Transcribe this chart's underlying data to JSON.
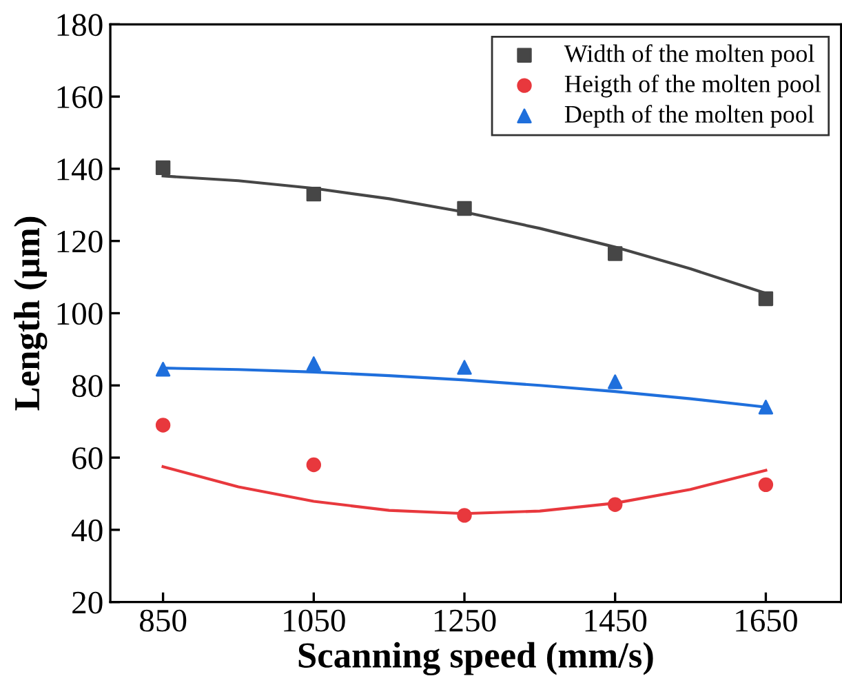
{
  "chart_data": {
    "type": "scatter",
    "xlabel": "Scanning speed (mm/s)",
    "ylabel": "Length (µm)",
    "xlim": [
      780,
      1750
    ],
    "xticks": [
      850,
      1050,
      1250,
      1450,
      1650
    ],
    "ylim": [
      20,
      180
    ],
    "yticks": [
      20,
      40,
      60,
      80,
      100,
      120,
      140,
      160,
      180
    ],
    "grid": false,
    "legend": "top right",
    "series": [
      {
        "name": "Width of the molten pool",
        "color": "#464646",
        "marker": "square",
        "x": [
          850,
          1050,
          1250,
          1450,
          1650
        ],
        "values": [
          140.3,
          133,
          129,
          116.5,
          104
        ]
      },
      {
        "name": "Heigth of the molten pool",
        "color": "#e8383d",
        "marker": "circle",
        "x": [
          850,
          1050,
          1250,
          1450,
          1650
        ],
        "values": [
          69,
          58,
          44,
          47,
          52.5
        ]
      },
      {
        "name": "Depth of the molten pool",
        "color": "#1f6fdc",
        "marker": "triangle",
        "x": [
          850,
          1050,
          1250,
          1450,
          1650
        ],
        "values": [
          84.5,
          86,
          85,
          81,
          74
        ]
      },
      {
        "type": "line",
        "color": "#464646",
        "x": [
          850,
          950,
          1050,
          1150,
          1250,
          1350,
          1450,
          1550,
          1650
        ],
        "values": [
          138,
          136.7,
          134.6,
          131.7,
          128,
          123.5,
          118.3,
          112.3,
          105.5
        ]
      },
      {
        "type": "line",
        "color": "#e8383d",
        "x": [
          850,
          950,
          1050,
          1150,
          1250,
          1350,
          1450,
          1550,
          1650
        ],
        "values": [
          57.5,
          51.9,
          47.9,
          45.4,
          44.5,
          45.2,
          47.4,
          51.2,
          56.5
        ]
      },
      {
        "type": "line",
        "color": "#1f6fdc",
        "x": [
          850,
          950,
          1050,
          1150,
          1250,
          1350,
          1450,
          1550,
          1650
        ],
        "values": [
          84.8,
          84.4,
          83.7,
          82.7,
          81.5,
          80.0,
          78.3,
          76.3,
          74
        ]
      }
    ]
  }
}
